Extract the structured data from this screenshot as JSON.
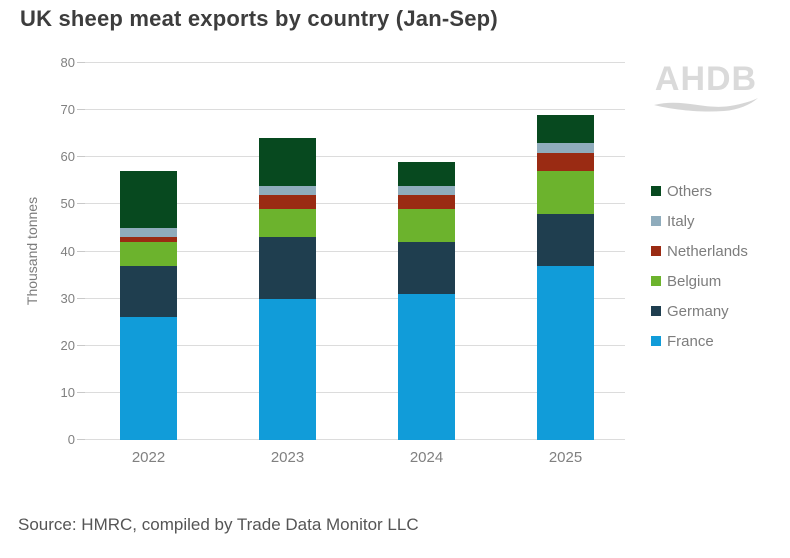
{
  "title": "UK sheep meat exports by country (Jan-Sep)",
  "source": "Source: HMRC, compiled by Trade Data Monitor LLC",
  "watermark": "AHDB",
  "colors": {
    "gridline": "#dcdcdc",
    "axis_text": "#808080",
    "title_text": "#3d3d3d",
    "watermark_gray": "#dadada"
  },
  "chart_data": {
    "type": "bar",
    "stacked": true,
    "title": "UK sheep meat exports by country (Jan-Sep)",
    "categories": [
      "2022",
      "2023",
      "2024",
      "2025"
    ],
    "series": [
      {
        "name": "France",
        "color": "#119cd9",
        "values": [
          26,
          30,
          31,
          37
        ]
      },
      {
        "name": "Germany",
        "color": "#1f3e4f",
        "values": [
          11,
          13,
          11,
          11
        ]
      },
      {
        "name": "Belgium",
        "color": "#6cb32d",
        "values": [
          5,
          6,
          7,
          9
        ]
      },
      {
        "name": "Netherlands",
        "color": "#9a2b13",
        "values": [
          1,
          3,
          3,
          4
        ]
      },
      {
        "name": "Italy",
        "color": "#8facbc",
        "values": [
          2,
          2,
          2,
          2
        ]
      },
      {
        "name": "Others",
        "color": "#07491f",
        "values": [
          12,
          10,
          5,
          6
        ]
      }
    ],
    "totals": [
      57,
      64,
      59,
      69
    ],
    "xlabel": "",
    "ylabel": "Thousand tonnes",
    "ylim": [
      0,
      80
    ],
    "ytick_step": 10,
    "grid": true,
    "legend_position": "right",
    "legend_order_top_to_bottom": [
      "Others",
      "Italy",
      "Netherlands",
      "Belgium",
      "Germany",
      "France"
    ]
  }
}
